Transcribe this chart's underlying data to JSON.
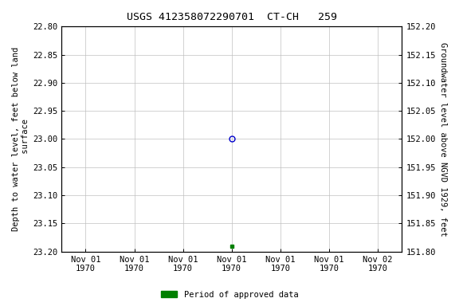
{
  "title": "USGS 412358072290701  CT-CH   259",
  "ylabel_left": "Depth to water level, feet below land\n surface",
  "ylabel_right": "Groundwater level above NGVD 1929, feet",
  "ylim_left": [
    22.8,
    23.2
  ],
  "ylim_right": [
    151.8,
    152.2
  ],
  "yticks_left": [
    22.8,
    22.85,
    22.9,
    22.95,
    23.0,
    23.05,
    23.1,
    23.15,
    23.2
  ],
  "yticks_right": [
    151.8,
    151.85,
    151.9,
    151.95,
    152.0,
    152.05,
    152.1,
    152.15,
    152.2
  ],
  "open_circle": {
    "x": "1970-11-01",
    "y": 23.0,
    "color": "#0000cc"
  },
  "green_square": {
    "x": "1970-11-01",
    "y": 23.19,
    "color": "#008000"
  },
  "x_tick_labels": [
    "Nov 01\n1970",
    "Nov 01\n1970",
    "Nov 01\n1970",
    "Nov 01\n1970",
    "Nov 01\n1970",
    "Nov 01\n1970",
    "Nov 02\n1970"
  ],
  "legend_label": "Period of approved data",
  "legend_color": "#008000",
  "background_color": "#ffffff",
  "grid_color": "#c0c0c0",
  "tick_label_fontsize": 7.5,
  "title_fontsize": 9.5,
  "axis_label_fontsize": 7.5
}
